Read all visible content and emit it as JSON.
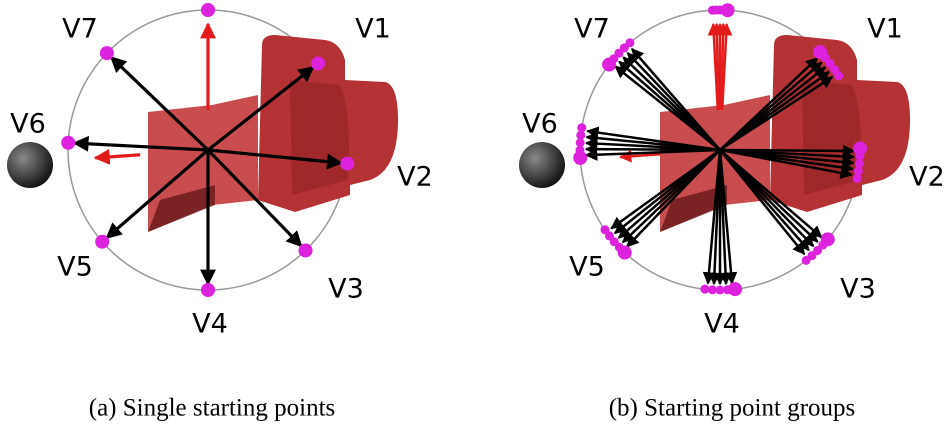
{
  "panels": [
    {
      "labels": [
        "V1",
        "V2",
        "V3",
        "V4",
        "V5",
        "V6",
        "V7"
      ],
      "caption": "(a) Single starting points"
    },
    {
      "labels": [
        "V1",
        "V2",
        "V3",
        "V4",
        "V5",
        "V6",
        "V7"
      ],
      "caption": "(b) Starting point groups"
    }
  ]
}
